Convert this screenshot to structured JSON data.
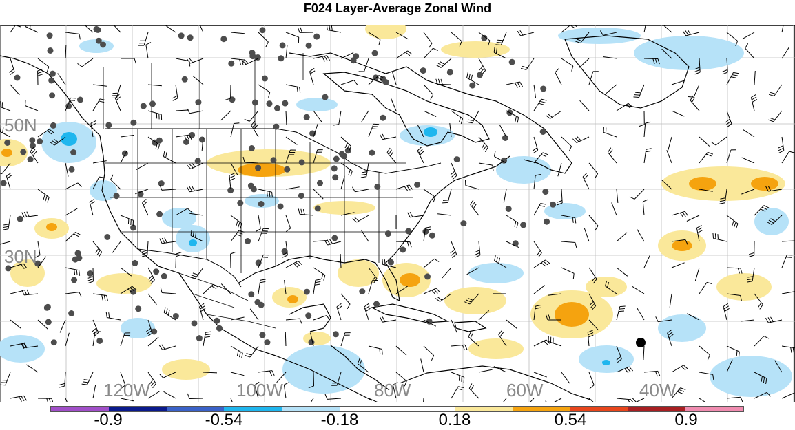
{
  "title": "F024 Layer-Average Zonal Wind",
  "lat_labels": [
    "50N",
    "30N"
  ],
  "lon_labels": [
    "120W",
    "100W",
    "80W",
    "60W",
    "40W"
  ],
  "colorbar": {
    "colors": [
      "#a14fc9",
      "#0a1a8c",
      "#3a62c9",
      "#1fb6ee",
      "#b6e2f8",
      "#ffffff",
      "#ffffff",
      "#fae89a",
      "#f5a30f",
      "#e8461c",
      "#a81f22",
      "#f08cb0"
    ],
    "tick_labels": [
      "-0.9",
      "-0.54",
      "-0.18",
      "0.18",
      "0.54",
      "0.9"
    ]
  },
  "map_colors": {
    "ocean": "#ffffff",
    "land_line": "#000000",
    "grid": "#bbbbbb",
    "station": "#4d4d4d",
    "positive_light": "#fae89a",
    "positive_strong": "#f5a30f",
    "negative_light": "#b6e2f8",
    "negative_strong": "#1fb6ee"
  }
}
